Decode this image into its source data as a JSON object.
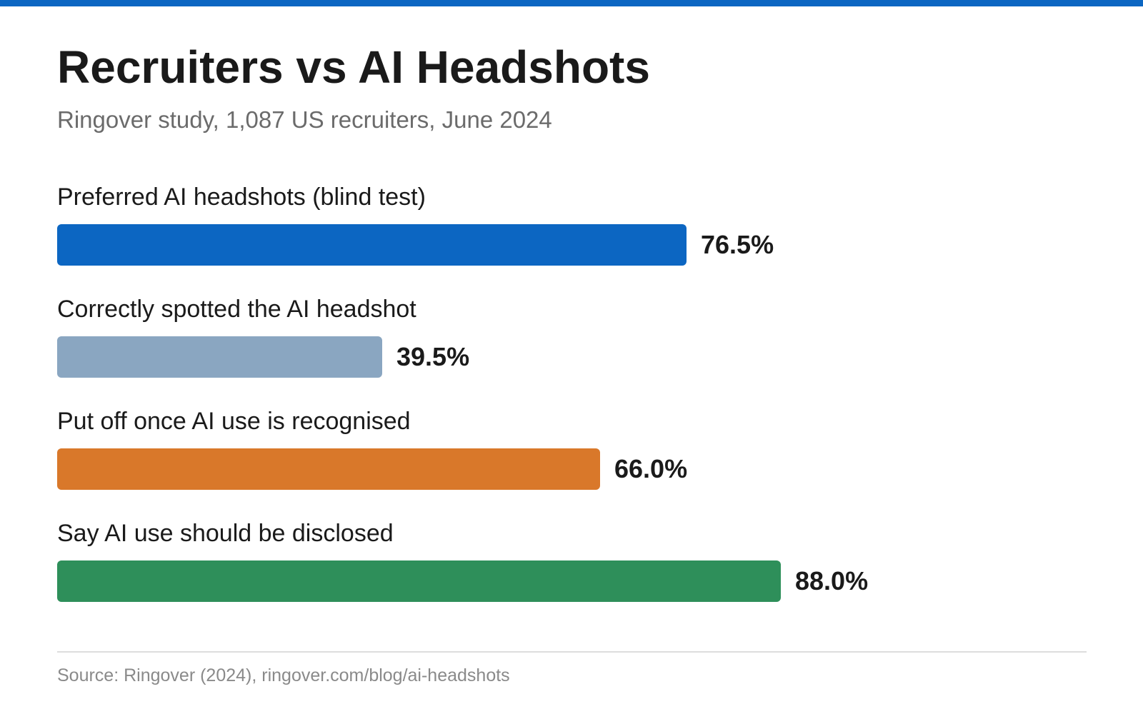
{
  "title": "Recruiters vs AI Headshots",
  "subtitle": "Ringover study, 1,087 US recruiters, June 2024",
  "source": "Source: Ringover (2024), ringover.com/blog/ai-headshots",
  "colors": {
    "accent": "#0c66c2",
    "preferred": "#0c66c2",
    "spotted": "#8aa6c1",
    "put_off": "#d9782a",
    "disclose": "#2e8f5a"
  },
  "chart_data": {
    "type": "bar",
    "orientation": "horizontal",
    "title": "Recruiters vs AI Headshots",
    "subtitle": "Ringover study, 1,087 US recruiters, June 2024",
    "xlim": [
      0,
      100
    ],
    "unit": "%",
    "grid": false,
    "categories": [
      "Preferred AI headshots (blind test)",
      "Correctly spotted the AI headshot",
      "Put off once AI use is recognised",
      "Say AI use should be disclosed"
    ],
    "values": [
      76.5,
      39.5,
      66.0,
      88.0
    ],
    "value_labels": [
      "76.5%",
      "39.5%",
      "66.0%",
      "88.0%"
    ],
    "bar_colors": [
      "#0c66c2",
      "#8aa6c1",
      "#d9782a",
      "#2e8f5a"
    ]
  }
}
